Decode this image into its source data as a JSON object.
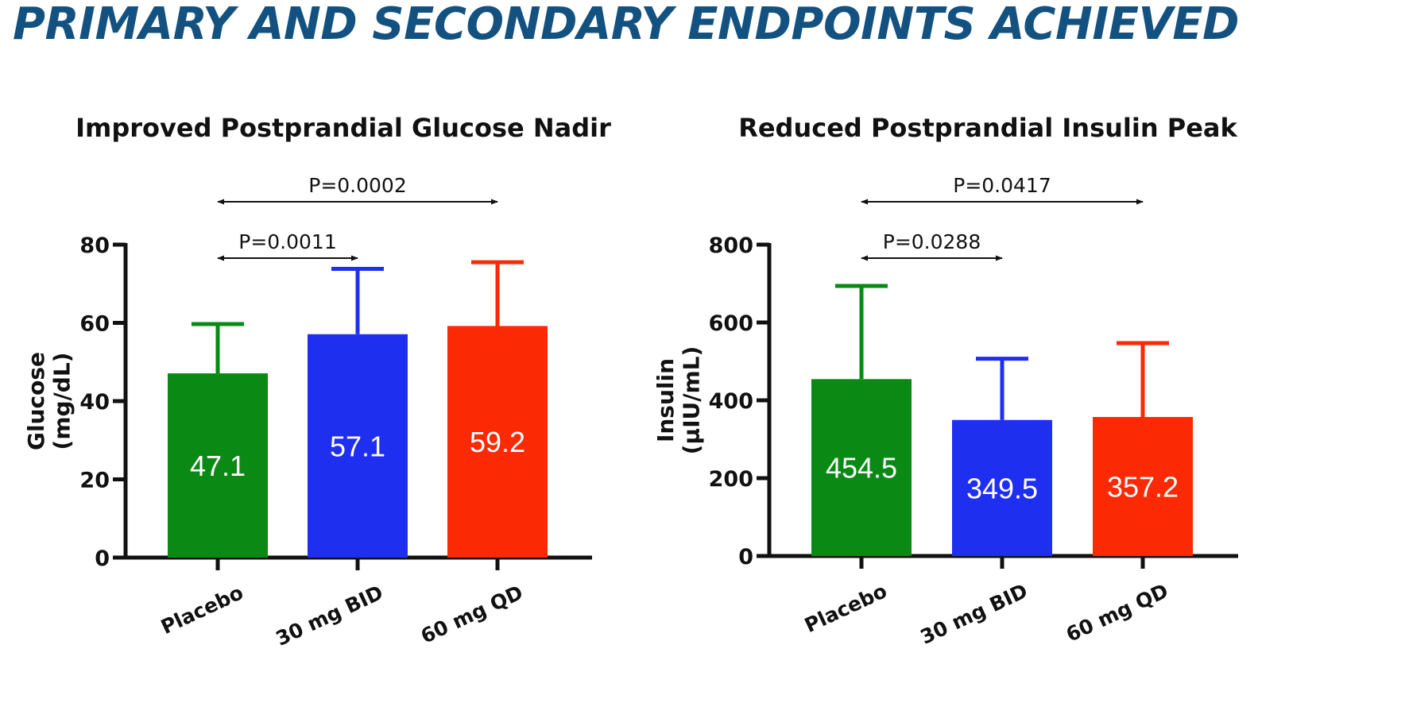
{
  "page_title": "PRIMARY AND SECONDARY ENDPOINTS ACHIEVED",
  "chart_data": [
    {
      "type": "bar",
      "title": "Improved Postprandial Glucose Nadir",
      "xlabel": "",
      "ylabel_line1": "Glucose",
      "ylabel_line2": "(mg/dL)",
      "ylim": [
        0,
        80
      ],
      "ytick_values": [
        0,
        20,
        40,
        60,
        80
      ],
      "ytick_labels": [
        "0",
        "20",
        "40",
        "60",
        "80"
      ],
      "categories": [
        "Placebo",
        "30 mg BID",
        "60 mg QD"
      ],
      "values": [
        47.1,
        57.1,
        59.2
      ],
      "value_labels": [
        "47.1",
        "57.1",
        "59.2"
      ],
      "error_upper": [
        59.7,
        73.8,
        75.5
      ],
      "colors": [
        "#0a8a14",
        "#1f2ff0",
        "#fb2a05"
      ],
      "comparisons": [
        {
          "label": "P=0.0002",
          "from": 0,
          "to": 2
        },
        {
          "label": "P=0.0011",
          "from": 0,
          "to": 1
        }
      ]
    },
    {
      "type": "bar",
      "title": "Reduced Postprandial Insulin Peak",
      "xlabel": "",
      "ylabel_line1": "Insulin",
      "ylabel_line2": "(µIU/mL)",
      "ylim": [
        0,
        800
      ],
      "ytick_values": [
        0,
        200,
        400,
        600,
        800
      ],
      "ytick_labels": [
        "0",
        "200",
        "400",
        "600",
        "800"
      ],
      "categories": [
        "Placebo",
        "30 mg BID",
        "60 mg QD"
      ],
      "values": [
        454.5,
        349.5,
        357.2
      ],
      "value_labels": [
        "454.5",
        "349.5",
        "357.2"
      ],
      "error_upper": [
        694,
        507,
        547
      ],
      "colors": [
        "#0a8a14",
        "#1f2ff0",
        "#fb2a05"
      ],
      "comparisons": [
        {
          "label": "P=0.0417",
          "from": 0,
          "to": 2
        },
        {
          "label": "P=0.0288",
          "from": 0,
          "to": 1
        }
      ]
    }
  ]
}
